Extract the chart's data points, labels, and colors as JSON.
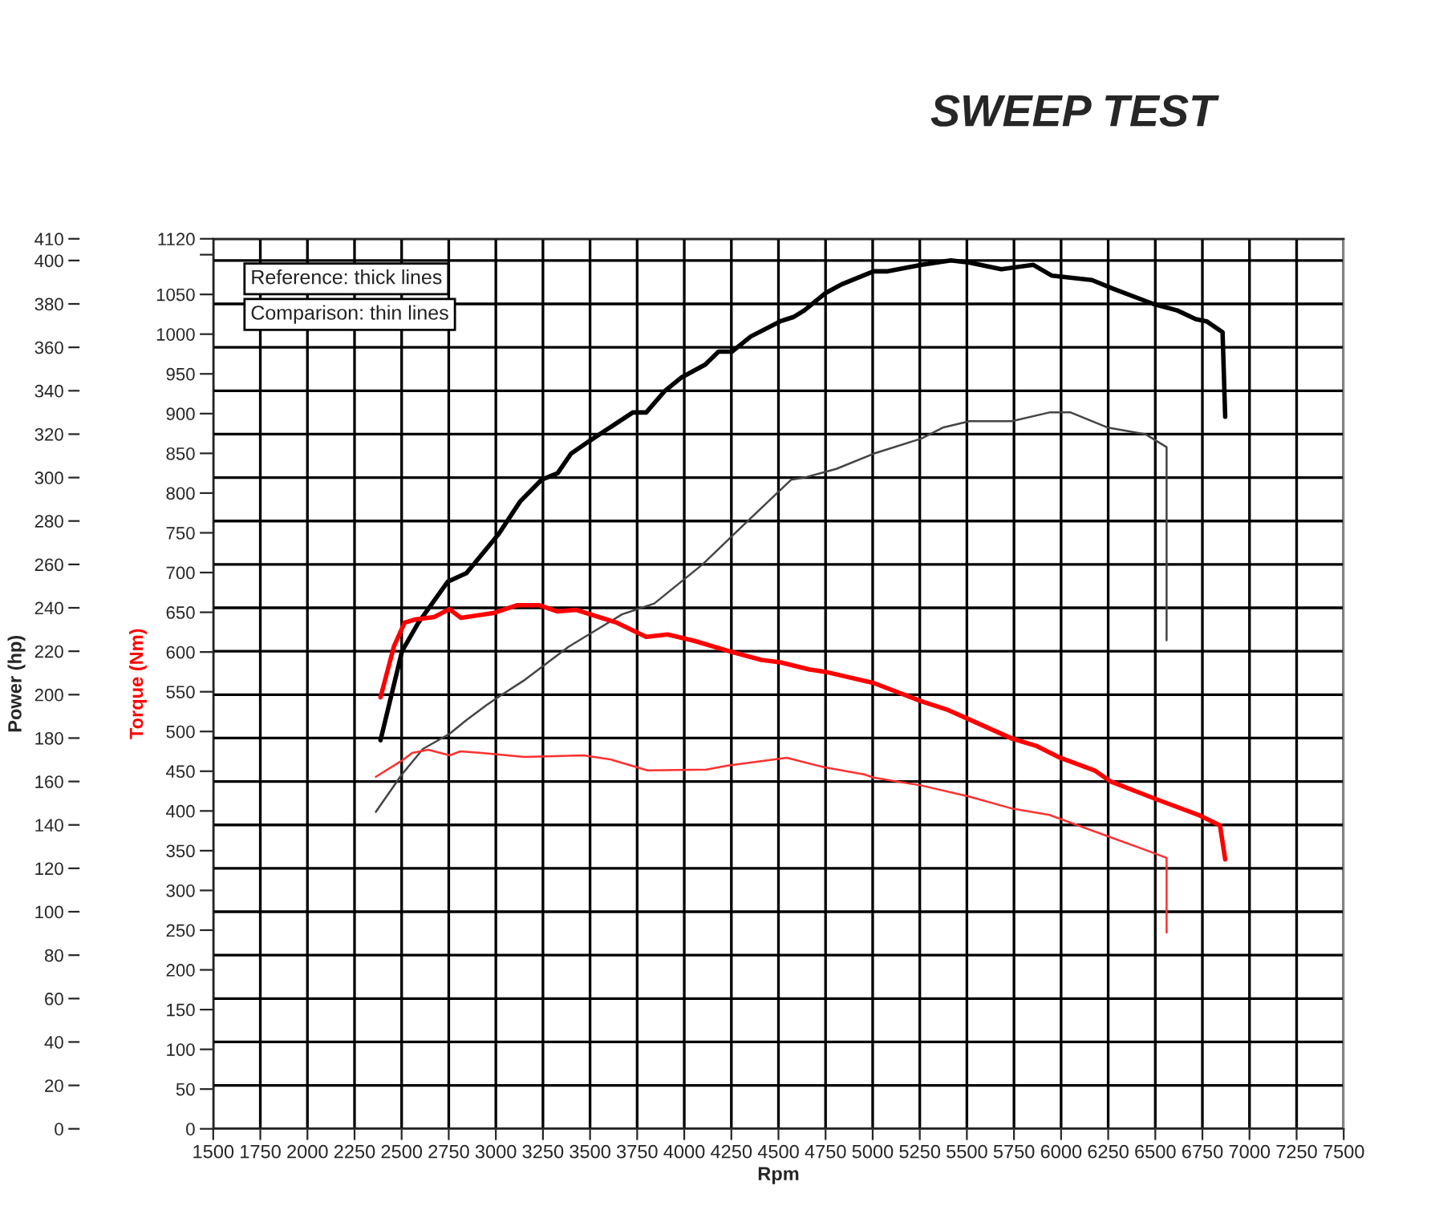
{
  "chart_data": {
    "type": "line",
    "title": "SWEEP TEST",
    "xlabel": "Rpm",
    "ylabel": "Power (hp)",
    "y2label": "Torque (Nm)",
    "annotations": [
      "Reference: thick lines",
      "Comparison: thin lines"
    ],
    "xlim": [
      1500,
      7500
    ],
    "xticks": [
      1500,
      1750,
      2000,
      2250,
      2500,
      2750,
      3000,
      3250,
      3500,
      3750,
      4000,
      4250,
      4500,
      4750,
      5000,
      5250,
      5500,
      5750,
      6000,
      6250,
      6500,
      6750,
      7000,
      7250,
      7500
    ],
    "ylim": [
      0,
      410
    ],
    "yticks": [
      0,
      20,
      40,
      60,
      80,
      100,
      120,
      140,
      160,
      180,
      200,
      220,
      240,
      260,
      280,
      300,
      320,
      340,
      360,
      380,
      400,
      410
    ],
    "y2lim": [
      0,
      1120
    ],
    "y2ticks": [
      0,
      50,
      100,
      150,
      200,
      250,
      300,
      350,
      400,
      450,
      500,
      550,
      600,
      650,
      700,
      750,
      800,
      850,
      900,
      950,
      1000,
      1050,
      {
        "value": 1100,
        "label": null
      },
      1120
    ],
    "grid": true,
    "legend": false,
    "series": [
      {
        "color": "#000000",
        "x": [
          2388,
          2502,
          2588,
          2744,
          2844,
          3015,
          3129,
          3243,
          3328,
          3399,
          3499,
          3727,
          3798,
          3898,
          3983,
          4111,
          4182,
          4253,
          4353,
          4510,
          4581,
          4637,
          4750,
          4835,
          5005,
          5075,
          5259,
          5415,
          5514,
          5683,
          5853,
          5952,
          6164,
          6277,
          6489,
          6616,
          6715,
          6772,
          6857,
          6871
        ],
        "values": [
          179,
          220,
          233,
          252,
          256,
          274,
          289,
          299,
          302,
          311,
          317,
          330,
          330,
          340,
          346,
          352,
          358,
          358,
          365,
          372,
          374,
          377,
          385,
          389,
          395,
          395,
          398,
          400,
          399,
          396,
          398,
          393,
          391,
          387,
          380,
          377,
          373,
          372,
          367,
          328
        ]
      },
      {
        "color": "#ff0000",
        "axis": "y2",
        "x": [
          2388,
          2459,
          2516,
          2573,
          2673,
          2753,
          2815,
          2986,
          3114,
          3228,
          3328,
          3427,
          3641,
          3798,
          3912,
          4054,
          4253,
          4410,
          4510,
          4666,
          4750,
          5005,
          5259,
          5400,
          5514,
          5740,
          5867,
          5994,
          6178,
          6263,
          6503,
          6729,
          6843,
          6871
        ],
        "values": [
          543,
          607,
          637,
          641,
          644,
          654,
          643,
          649,
          659,
          659,
          651,
          653,
          637,
          619,
          622,
          614,
          600,
          590,
          587,
          578,
          575,
          561,
          538,
          527,
          515,
          491,
          482,
          467,
          451,
          437,
          415,
          395,
          382,
          339
        ]
      },
      {
        "color": "#444444",
        "x": [
          2363,
          2499,
          2613,
          2755,
          2840,
          2948,
          3015,
          3157,
          3385,
          3670,
          3841,
          4097,
          4325,
          4567,
          4637,
          4807,
          5005,
          5259,
          5372,
          5514,
          5740,
          5938,
          6051,
          6249,
          6447,
          6560,
          6560
        ],
        "values": [
          146,
          163,
          175,
          182,
          188,
          195,
          199,
          207,
          222,
          237,
          242,
          260,
          279,
          299,
          300,
          304,
          311,
          318,
          323,
          326,
          326,
          330,
          330,
          323,
          320,
          314,
          225
        ]
      },
      {
        "color": "#ff3030",
        "axis": "y2",
        "x": [
          2363,
          2499,
          2556,
          2641,
          2755,
          2812,
          2925,
          3152,
          3464,
          3606,
          3805,
          4117,
          4231,
          4544,
          4742,
          4955,
          5005,
          5259,
          5514,
          5740,
          5938,
          6249,
          6447,
          6560,
          6560
        ],
        "values": [
          443,
          463,
          473,
          477,
          470,
          475,
          473,
          468,
          470,
          465,
          451,
          452,
          457,
          467,
          455,
          446,
          442,
          432,
          418,
          403,
          395,
          368,
          351,
          341,
          247
        ]
      }
    ]
  }
}
